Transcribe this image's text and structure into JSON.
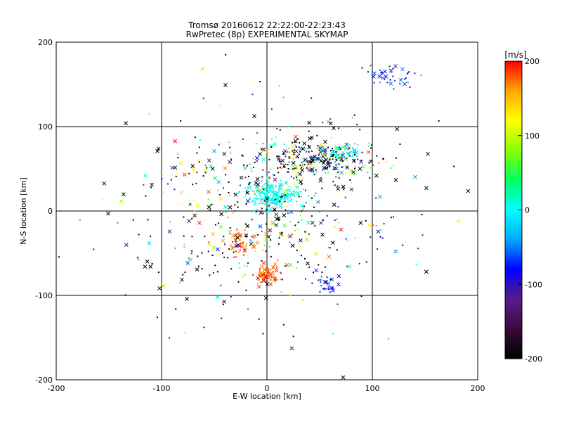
{
  "chart_data": {
    "type": "scatter",
    "title": "Tromsø 20160612 22:22:00-22:23:43",
    "subtitle": "RwPretec (8p) EXPERIMENTAL SKYMAP",
    "xlabel": "E-W location [km]",
    "ylabel": "N-S location [km]",
    "xlim": [
      -200,
      200
    ],
    "ylim": [
      -200,
      200
    ],
    "xticks": [
      -200,
      -100,
      0,
      100,
      200
    ],
    "yticks": [
      -200,
      -100,
      0,
      100,
      200
    ],
    "grid": true,
    "markers": [
      "cross",
      "dot"
    ],
    "colorbar": {
      "label": "[m/s]",
      "range": [
        -200,
        200
      ],
      "ticks": [
        200,
        100,
        0,
        -100,
        -200
      ],
      "colors": [
        "#000000",
        "#3a0a3a",
        "#5a1a8a",
        "#0000ff",
        "#00aaff",
        "#00ffff",
        "#00ff66",
        "#88ff00",
        "#ffff00",
        "#ffaa00",
        "#ff0000"
      ]
    },
    "clusters": [
      {
        "name": "",
        "cx": 5,
        "cy": 20,
        "sx": 12,
        "sy": 8,
        "n": 220,
        "velocity": [
          -20,
          20
        ]
      },
      {
        "name": "",
        "cx": 50,
        "cy": 60,
        "sx": 30,
        "sy": 12,
        "n": 260,
        "velocity": [
          -200,
          200
        ]
      },
      {
        "name": "",
        "cx": 0,
        "cy": -75,
        "sx": 6,
        "sy": 5,
        "n": 80,
        "velocity": [
          160,
          200
        ]
      },
      {
        "name": "",
        "cx": -25,
        "cy": -40,
        "sx": 6,
        "sy": 10,
        "n": 50,
        "velocity": [
          150,
          200
        ]
      },
      {
        "name": "",
        "cx": 120,
        "cy": 160,
        "sx": 12,
        "sy": 7,
        "n": 45,
        "velocity": [
          -110,
          -40
        ]
      },
      {
        "name": "",
        "cx": 55,
        "cy": -85,
        "sx": 6,
        "sy": 6,
        "n": 30,
        "velocity": [
          -110,
          -50
        ]
      },
      {
        "name": "",
        "cx": 75,
        "cy": 70,
        "sx": 8,
        "sy": 4,
        "n": 40,
        "velocity": [
          -30,
          30
        ]
      },
      {
        "name": "",
        "cx": 0,
        "cy": 0,
        "sx": 70,
        "sy": 60,
        "n": 500,
        "velocity": [
          -200,
          200
        ]
      }
    ]
  }
}
